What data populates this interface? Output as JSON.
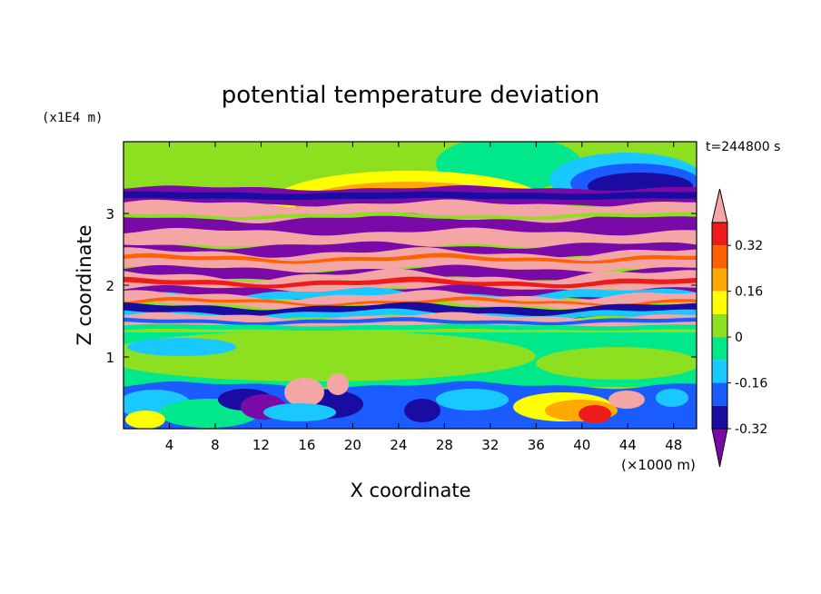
{
  "chart_data": {
    "type": "heatmap",
    "title": "potential temperature deviation",
    "xlabel": "X coordinate",
    "ylabel": "Z coordinate",
    "x_unit": "(×1000 m)",
    "y_unit": "(x1E4 m)",
    "time_label": "t=244800 s",
    "xlim": [
      0,
      50
    ],
    "ylim": [
      0,
      4
    ],
    "x_ticks": [
      4,
      8,
      12,
      16,
      20,
      24,
      28,
      32,
      36,
      40,
      44,
      48
    ],
    "y_ticks": [
      1,
      2,
      3
    ],
    "colorbar": {
      "levels": [
        -0.4,
        -0.32,
        -0.24,
        -0.16,
        -0.08,
        0,
        0.08,
        0.16,
        0.24,
        0.32,
        0.4
      ],
      "labeled_levels": [
        -0.32,
        -0.16,
        0,
        0.16,
        0.32
      ],
      "tick_labels": [
        "0.32",
        "0.16",
        "0",
        "-0.16",
        "-0.32"
      ],
      "colors": [
        "#7a0aa8",
        "#1a0ca0",
        "#1a5cff",
        "#19c8ff",
        "#00e88a",
        "#8ce020",
        "#ffff00",
        "#ffaa00",
        "#ff6000",
        "#ee1b1b",
        "#f4a6a6"
      ],
      "extend": "both"
    }
  }
}
